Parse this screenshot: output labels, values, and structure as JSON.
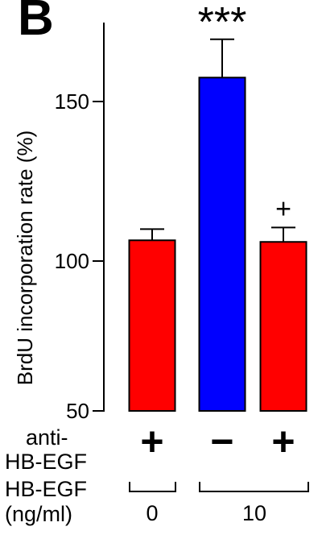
{
  "panel_label": "B",
  "chart_data": {
    "type": "bar",
    "ylabel": "BrdU incorporation rate (%)",
    "ylim": [
      50,
      175
    ],
    "yticks": [
      "50",
      "100",
      "150"
    ],
    "grid": false,
    "bars": [
      {
        "value": 106.5,
        "error": 3.5,
        "color": "#ff0000",
        "annotation": ""
      },
      {
        "value": 157.5,
        "error": 12,
        "color": "#0000ff",
        "annotation": "***"
      },
      {
        "value": 106,
        "error": 4.5,
        "color": "#ff0000",
        "annotation": "+"
      }
    ]
  },
  "conditions": {
    "anti_label_line1": "anti-",
    "anti_label_line2": "HB-EGF",
    "anti_signs": [
      "+",
      "−",
      "+"
    ],
    "hb_label_line1": "HB-EGF",
    "hb_label_line2": "(ng/ml)",
    "groups": [
      "0",
      "10"
    ]
  }
}
